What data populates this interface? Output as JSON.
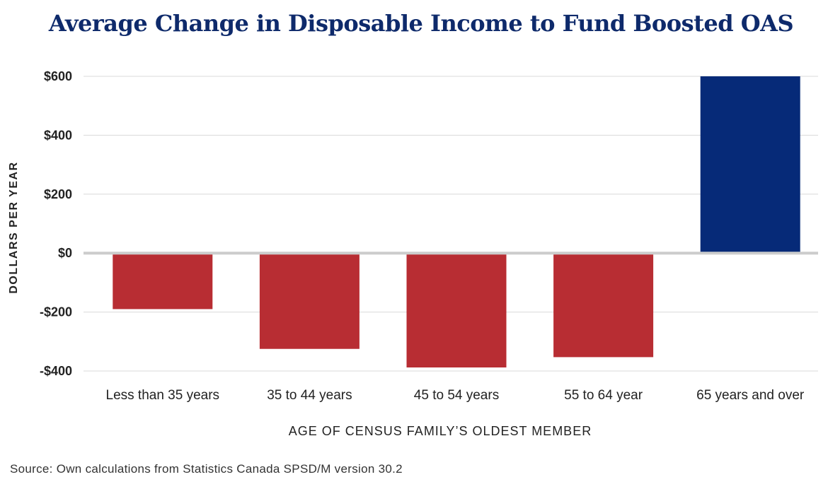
{
  "chart_data": {
    "type": "bar",
    "title": "Average Change in Disposable Income to Fund Boosted OAS",
    "xlabel": "AGE OF CENSUS FAMILY’S OLDEST MEMBER",
    "ylabel": "DOLLARS PER YEAR",
    "categories": [
      "Less than 35 years",
      "35 to 44 years",
      "45 to 54 years",
      "55 to 64 year",
      "65 years and over"
    ],
    "values": [
      -190,
      -325,
      -388,
      -353,
      600
    ],
    "ylim": [
      -400,
      600
    ],
    "yticks": [
      600,
      400,
      200,
      0,
      -200,
      -400
    ],
    "ytick_labels": [
      "$600",
      "$400",
      "$200",
      "$0",
      "-$200",
      "-$400"
    ],
    "grid": true,
    "colors": {
      "negative": "#b82d33",
      "positive": "#062a78",
      "grid": "#d9d9d9",
      "zero_line": "#cccccc"
    }
  },
  "source": "Source: Own calculations from Statistics Canada SPSD/M version 30.2"
}
